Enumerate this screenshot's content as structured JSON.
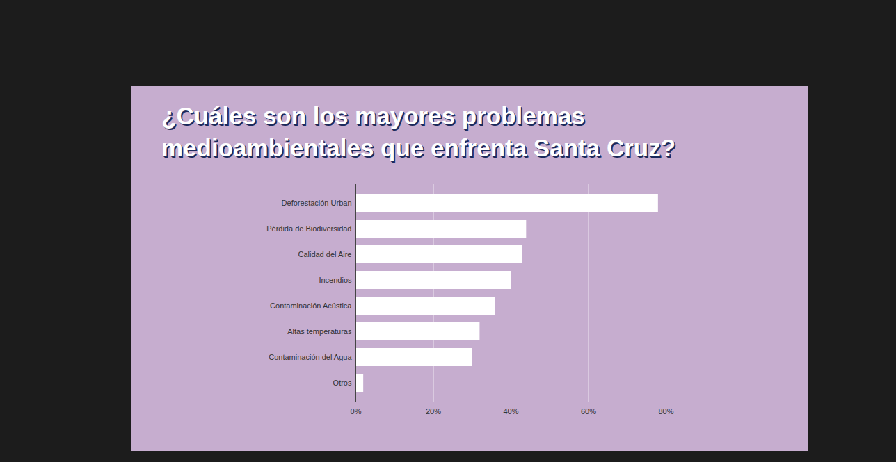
{
  "chart_data": {
    "type": "bar",
    "orientation": "horizontal",
    "title": "¿Cuáles son los mayores problemas medioambientales que enfrenta Santa Cruz?",
    "categories": [
      "Deforestación Urban",
      "Pérdida de Biodiversidad",
      "Calidad del Aire",
      "Incendios",
      "Contaminación Acústica",
      "Altas temperaturas",
      "Contaminación del Agua",
      "Otros"
    ],
    "values": [
      78,
      44,
      43,
      40,
      36,
      32,
      30,
      2
    ],
    "color": "#ffffff",
    "xlim": [
      0,
      80
    ],
    "xticks": [
      {
        "value": 0,
        "label": "0%"
      },
      {
        "value": 20,
        "label": "20%"
      },
      {
        "value": 40,
        "label": "40%"
      },
      {
        "value": 60,
        "label": "60%"
      },
      {
        "value": 80,
        "label": "80%"
      }
    ],
    "grid": true
  }
}
